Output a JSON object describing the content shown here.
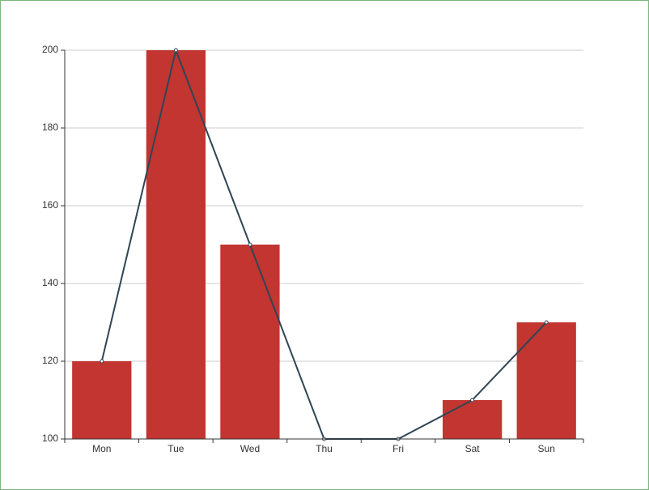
{
  "chart_data": {
    "type": "bar",
    "categories": [
      "Mon",
      "Tue",
      "Wed",
      "Thu",
      "Fri",
      "Sat",
      "Sun"
    ],
    "series": [
      {
        "type": "bar",
        "color": "#c23531",
        "values": [
          120,
          200,
          150,
          100,
          100,
          110,
          130
        ]
      },
      {
        "type": "line",
        "color": "#2f4554",
        "values": [
          120,
          200,
          150,
          100,
          100,
          110,
          130
        ]
      }
    ],
    "ylim": [
      100,
      200
    ],
    "yticks": [
      100,
      120,
      140,
      160,
      180,
      200
    ],
    "grid": true
  }
}
